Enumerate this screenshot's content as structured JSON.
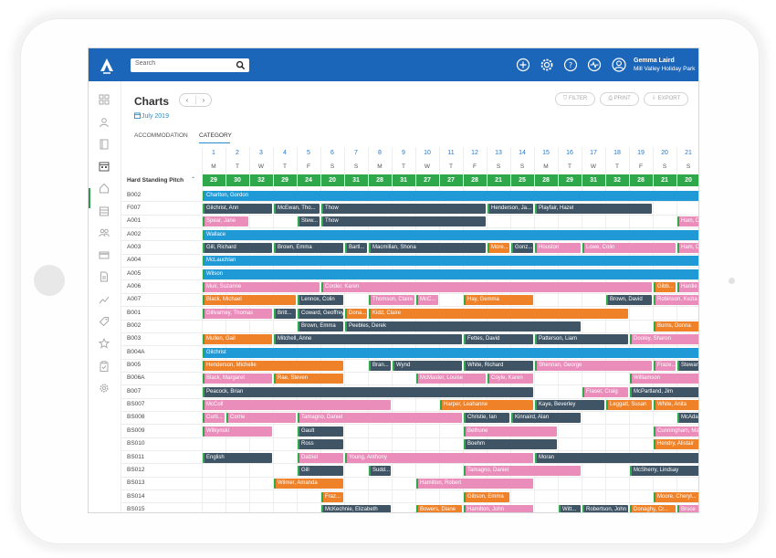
{
  "header": {
    "search_placeholder": "Search",
    "user_name": "Gemma Laird",
    "user_park": "Mill Valley Holiday Park",
    "icons": [
      "add-icon",
      "settings-icon",
      "help-icon",
      "activity-icon",
      "user-icon"
    ]
  },
  "sidebar": {
    "icons": [
      "dashboard-icon",
      "guest-icon",
      "book-icon",
      "calendar-icon",
      "home-icon",
      "calendar-grid-icon",
      "people-icon",
      "card-icon",
      "document-icon",
      "trend-icon",
      "tag-icon",
      "star-icon",
      "clipboard-icon",
      "settings-icon"
    ],
    "active_index": 3
  },
  "page": {
    "title": "Charts",
    "date": "July 2019",
    "nav_prev": "‹",
    "nav_next": "›",
    "filter_label": "FILTER",
    "print_label": "PRINT",
    "export_label": "EXPORT"
  },
  "tabs": [
    {
      "label": "ACCOMMODATION"
    },
    {
      "label": "CATEGORY"
    }
  ],
  "active_tab": 1,
  "category": "Hard Standing Pitch",
  "days": [
    "1",
    "2",
    "3",
    "4",
    "5",
    "6",
    "7",
    "8",
    "9",
    "10",
    "11",
    "12",
    "13",
    "14",
    "15",
    "16",
    "17",
    "18",
    "19",
    "20",
    "21"
  ],
  "day_letters": [
    "M",
    "T",
    "W",
    "T",
    "F",
    "S",
    "S",
    "M",
    "T",
    "W",
    "T",
    "F",
    "S",
    "S",
    "M",
    "T",
    "W",
    "T",
    "F",
    "S",
    "S"
  ],
  "availability": [
    "29",
    "30",
    "32",
    "29",
    "24",
    "20",
    "31",
    "28",
    "31",
    "27",
    "27",
    "28",
    "21",
    "25",
    "28",
    "29",
    "31",
    "32",
    "28",
    "21",
    "20"
  ],
  "colors": {
    "dark": "#3f5465",
    "blue": "#1f9ad6",
    "pink": "#ea8dbb",
    "orange": "#ef8229",
    "green": "#2fa84b"
  },
  "rows": [
    {
      "label": "B002",
      "bars": [
        {
          "name": "Charlton, Gordon",
          "start": 0,
          "span": 21,
          "color": "blue"
        }
      ]
    },
    {
      "label": "F007",
      "bars": [
        {
          "name": "Gilchrist, Ann",
          "start": 0,
          "span": 3,
          "color": "dark"
        },
        {
          "name": "McEwan, Tho...",
          "start": 3,
          "span": 2,
          "color": "dark"
        },
        {
          "name": "Thow",
          "start": 5,
          "span": 7,
          "color": "dark"
        },
        {
          "name": "Henderson, Ja...",
          "start": 12,
          "span": 2,
          "color": "dark"
        },
        {
          "name": "Playfair, Hazel",
          "start": 14,
          "span": 5,
          "color": "dark"
        }
      ]
    },
    {
      "label": "A001",
      "bars": [
        {
          "name": "Spear, Jane",
          "start": 0,
          "span": 2,
          "color": "pink"
        },
        {
          "name": "Stew...",
          "start": 4,
          "span": 1,
          "color": "dark"
        },
        {
          "name": "Thow",
          "start": 5,
          "span": 7,
          "color": "dark"
        },
        {
          "name": "Ham, D",
          "start": 20,
          "span": 1,
          "color": "pink"
        }
      ]
    },
    {
      "label": "A002",
      "bars": [
        {
          "name": "Wallace",
          "start": 0,
          "span": 21,
          "color": "blue"
        }
      ]
    },
    {
      "label": "A003",
      "bars": [
        {
          "name": "Gill, Richard",
          "start": 0,
          "span": 3,
          "color": "dark"
        },
        {
          "name": "Brown, Emma",
          "start": 3,
          "span": 3,
          "color": "dark"
        },
        {
          "name": "Bartl...",
          "start": 6,
          "span": 1,
          "color": "dark"
        },
        {
          "name": "Macmillan, Shona",
          "start": 7,
          "span": 5,
          "color": "dark"
        },
        {
          "name": "More...",
          "start": 12,
          "span": 1,
          "color": "orange"
        },
        {
          "name": "Gonz...",
          "start": 13,
          "span": 1,
          "color": "dark"
        },
        {
          "name": "Houston",
          "start": 14,
          "span": 2,
          "color": "pink"
        },
        {
          "name": "Lowe, Colin",
          "start": 16,
          "span": 4,
          "color": "pink"
        },
        {
          "name": "Ham, D",
          "start": 20,
          "span": 1,
          "color": "pink"
        }
      ]
    },
    {
      "label": "A004",
      "bars": [
        {
          "name": "McLauchlan",
          "start": 0,
          "span": 21,
          "color": "blue"
        }
      ]
    },
    {
      "label": "A005",
      "bars": [
        {
          "name": "Wilson",
          "start": 0,
          "span": 21,
          "color": "blue"
        }
      ]
    },
    {
      "label": "A006",
      "bars": [
        {
          "name": "Muir, Suzanne",
          "start": 0,
          "span": 5,
          "color": "pink"
        },
        {
          "name": "Corder, Karen",
          "start": 5,
          "span": 14,
          "color": "pink"
        },
        {
          "name": "Gibb...",
          "start": 19,
          "span": 1,
          "color": "orange"
        },
        {
          "name": "Hardie",
          "start": 20,
          "span": 1,
          "color": "pink"
        }
      ]
    },
    {
      "label": "A007",
      "bars": [
        {
          "name": "Black, Michael",
          "start": 0,
          "span": 4,
          "color": "orange"
        },
        {
          "name": "Lennox, Colin",
          "start": 4,
          "span": 2,
          "color": "dark"
        },
        {
          "name": "Thomson, Claire",
          "start": 7,
          "span": 2,
          "color": "pink"
        },
        {
          "name": "McC...",
          "start": 9,
          "span": 1,
          "color": "pink"
        },
        {
          "name": "Hay, Gemma",
          "start": 11,
          "span": 3,
          "color": "orange"
        },
        {
          "name": "Brown, David",
          "start": 17,
          "span": 2,
          "color": "dark"
        },
        {
          "name": "Robinson, Kezia",
          "start": 19,
          "span": 2,
          "color": "pink"
        }
      ]
    },
    {
      "label": "B001",
      "bars": [
        {
          "name": "Gillvarney, Thomas",
          "start": 0,
          "span": 3,
          "color": "pink"
        },
        {
          "name": "Britt...",
          "start": 3,
          "span": 1,
          "color": "dark"
        },
        {
          "name": "Coward, Geoffrey",
          "start": 4,
          "span": 2,
          "color": "dark"
        },
        {
          "name": "Dona...",
          "start": 6,
          "span": 1,
          "color": "orange"
        },
        {
          "name": "Kidd, Claire",
          "start": 7,
          "span": 11,
          "color": "orange"
        }
      ]
    },
    {
      "label": "B002",
      "bars": [
        {
          "name": "Brown, Emma",
          "start": 4,
          "span": 2,
          "color": "dark"
        },
        {
          "name": "Peebles, Derek",
          "start": 6,
          "span": 10,
          "color": "dark"
        },
        {
          "name": "Burns, Donna",
          "start": 19,
          "span": 2,
          "color": "orange"
        }
      ]
    },
    {
      "label": "B003",
      "bars": [
        {
          "name": "Mullen, Gail",
          "start": 0,
          "span": 3,
          "color": "orange"
        },
        {
          "name": "Mitchell, Anne",
          "start": 3,
          "span": 8,
          "color": "dark"
        },
        {
          "name": "Fettes, David",
          "start": 11,
          "span": 3,
          "color": "dark"
        },
        {
          "name": "Patterson, Liam",
          "start": 14,
          "span": 4,
          "color": "dark"
        },
        {
          "name": "Dooley, Sharon",
          "start": 18,
          "span": 3,
          "color": "pink"
        }
      ]
    },
    {
      "label": "B004A",
      "bars": [
        {
          "name": "Gilchrist",
          "start": 0,
          "span": 21,
          "color": "blue"
        }
      ]
    },
    {
      "label": "B005",
      "bars": [
        {
          "name": "Henderson, Michelle",
          "start": 0,
          "span": 6,
          "color": "orange"
        },
        {
          "name": "Bran...",
          "start": 7,
          "span": 1,
          "color": "dark"
        },
        {
          "name": "Wynd",
          "start": 8,
          "span": 3,
          "color": "dark"
        },
        {
          "name": "White, Richard",
          "start": 11,
          "span": 3,
          "color": "dark"
        },
        {
          "name": "Shennan, George",
          "start": 14,
          "span": 5,
          "color": "pink"
        },
        {
          "name": "Fraze...",
          "start": 19,
          "span": 1,
          "color": "pink"
        },
        {
          "name": "Stewart",
          "start": 20,
          "span": 1,
          "color": "dark"
        }
      ]
    },
    {
      "label": "B006A",
      "bars": [
        {
          "name": "Black, Margaret",
          "start": 0,
          "span": 3,
          "color": "pink"
        },
        {
          "name": "Rae, Steven",
          "start": 3,
          "span": 3,
          "color": "orange"
        },
        {
          "name": "McMaster, Louise",
          "start": 9,
          "span": 3,
          "color": "pink"
        },
        {
          "name": "Coyle, Karen",
          "start": 12,
          "span": 2,
          "color": "pink"
        },
        {
          "name": "Williamson",
          "start": 18,
          "span": 3,
          "color": "pink"
        }
      ]
    },
    {
      "label": "B007",
      "bars": [
        {
          "name": "Peacock, Brian",
          "start": 0,
          "span": 14,
          "color": "dark"
        },
        {
          "name": "Fraser, Craig",
          "start": 16,
          "span": 2,
          "color": "pink"
        },
        {
          "name": "McPartland, Jim",
          "start": 18,
          "span": 3,
          "color": "dark"
        }
      ]
    },
    {
      "label": "BS007",
      "bars": [
        {
          "name": "McColl",
          "start": 0,
          "span": 8,
          "color": "pink"
        },
        {
          "name": "Harper, Leahanne",
          "start": 10,
          "span": 4,
          "color": "orange"
        },
        {
          "name": "Kaye, Beverley",
          "start": 14,
          "span": 3,
          "color": "dark"
        },
        {
          "name": "Leggatt, Susan",
          "start": 17,
          "span": 2,
          "color": "orange"
        },
        {
          "name": "White, Anita",
          "start": 19,
          "span": 2,
          "color": "orange"
        }
      ]
    },
    {
      "label": "BS008",
      "bars": [
        {
          "name": "Curti...",
          "start": 0,
          "span": 1,
          "color": "pink"
        },
        {
          "name": "Corrie",
          "start": 1,
          "span": 3,
          "color": "pink"
        },
        {
          "name": "Tamagno, Daniel",
          "start": 4,
          "span": 7,
          "color": "pink"
        },
        {
          "name": "Christie, Ian",
          "start": 11,
          "span": 2,
          "color": "dark"
        },
        {
          "name": "Kinnaird, Alan",
          "start": 13,
          "span": 3,
          "color": "dark"
        },
        {
          "name": "McAdam",
          "start": 20,
          "span": 1,
          "color": "dark"
        }
      ]
    },
    {
      "label": "BS009",
      "bars": [
        {
          "name": "Wilkynski",
          "start": 0,
          "span": 3,
          "color": "pink"
        },
        {
          "name": "Gault",
          "start": 4,
          "span": 2,
          "color": "dark"
        },
        {
          "name": "Bethune",
          "start": 11,
          "span": 4,
          "color": "pink"
        },
        {
          "name": "Cunningham, Mar",
          "start": 19,
          "span": 2,
          "color": "pink"
        }
      ]
    },
    {
      "label": "BS010",
      "bars": [
        {
          "name": "Ross",
          "start": 4,
          "span": 2,
          "color": "dark"
        },
        {
          "name": "Boehm",
          "start": 11,
          "span": 4,
          "color": "dark"
        },
        {
          "name": "Hendry, Alistair",
          "start": 19,
          "span": 2,
          "color": "orange"
        }
      ]
    },
    {
      "label": "BS011",
      "bars": [
        {
          "name": "English",
          "start": 0,
          "span": 3,
          "color": "dark"
        },
        {
          "name": "Dalziel",
          "start": 4,
          "span": 2,
          "color": "pink"
        },
        {
          "name": "Young, Anthony",
          "start": 6,
          "span": 8,
          "color": "pink"
        },
        {
          "name": "Moran",
          "start": 14,
          "span": 7,
          "color": "dark"
        }
      ]
    },
    {
      "label": "BS012",
      "bars": [
        {
          "name": "Gill",
          "start": 4,
          "span": 2,
          "color": "dark"
        },
        {
          "name": "Sudd...",
          "start": 7,
          "span": 1,
          "color": "dark"
        },
        {
          "name": "Tamagno, Daniel",
          "start": 11,
          "span": 5,
          "color": "pink"
        },
        {
          "name": "McSherry, Lindsay",
          "start": 18,
          "span": 3,
          "color": "dark"
        }
      ]
    },
    {
      "label": "BS013",
      "bars": [
        {
          "name": "Wilmer, Amanda",
          "start": 3,
          "span": 3,
          "color": "orange"
        },
        {
          "name": "Hamilton, Robert",
          "start": 9,
          "span": 5,
          "color": "pink"
        }
      ]
    },
    {
      "label": "BS014",
      "bars": [
        {
          "name": "Fraz...",
          "start": 5,
          "span": 1,
          "color": "orange"
        },
        {
          "name": "Gibson, Emma",
          "start": 11,
          "span": 2,
          "color": "orange"
        },
        {
          "name": "Moore, Cheryl...",
          "start": 19,
          "span": 2,
          "color": "orange"
        }
      ]
    },
    {
      "label": "BS015",
      "bars": [
        {
          "name": "McKechnie, Elizabeth",
          "start": 5,
          "span": 3,
          "color": "dark"
        },
        {
          "name": "Bowers, Diane",
          "start": 9,
          "span": 2,
          "color": "orange"
        },
        {
          "name": "Hamilton, John",
          "start": 11,
          "span": 3,
          "color": "pink"
        },
        {
          "name": "Witt...",
          "start": 15,
          "span": 1,
          "color": "dark"
        },
        {
          "name": "Robertson, John",
          "start": 16,
          "span": 2,
          "color": "dark"
        },
        {
          "name": "Donaghy, Cr...",
          "start": 18,
          "span": 2,
          "color": "orange"
        },
        {
          "name": "Bruce",
          "start": 20,
          "span": 1,
          "color": "pink"
        }
      ]
    }
  ]
}
